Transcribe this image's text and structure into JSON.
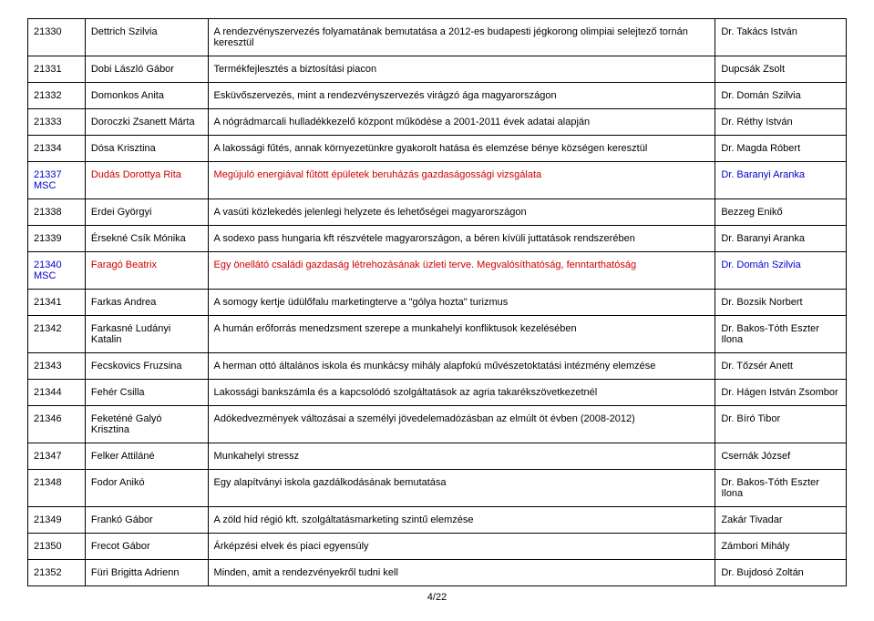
{
  "page_number": "4/22",
  "rows": [
    {
      "id": "21330",
      "name": "Dettrich Szilvia",
      "desc": "A rendezvényszervezés folyamatának bemutatása a 2012-es budapesti jégkorong olimpiai selejtező tornán keresztül",
      "rev": "Dr. Takács István",
      "highlight": false
    },
    {
      "id": "21331",
      "name": "Dobi László Gábor",
      "desc": "Termékfejlesztés a biztosítási piacon",
      "rev": "Dupcsák Zsolt",
      "highlight": false
    },
    {
      "id": "21332",
      "name": "Domonkos Anita",
      "desc": "Esküvőszervezés, mint a rendezvényszervezés virágzó ága magyarországon",
      "rev": "Dr. Domán Szilvia",
      "highlight": false
    },
    {
      "id": "21333",
      "name": "Doroczki Zsanett Márta",
      "desc": "A nógrádmarcali hulladékkezelő központ működése a 2001-2011 évek adatai alapján",
      "rev": "Dr. Réthy István",
      "highlight": false
    },
    {
      "id": "21334",
      "name": "Dósa Krisztina",
      "desc": "A lakossági fűtés, annak környezetünkre gyakorolt hatása és elemzése bénye községen keresztül",
      "rev": "Dr. Magda Róbert",
      "highlight": false
    },
    {
      "id": "21337 MSC",
      "name": "Dudás Dorottya Rita",
      "desc": "Megújuló energiával fűtött épületek beruházás gazdaságossági vizsgálata",
      "rev": "Dr. Baranyi Aranka",
      "highlight": true
    },
    {
      "id": "21338",
      "name": "Erdei Györgyi",
      "desc": "A vasúti közlekedés jelenlegi helyzete és lehetőségei magyarországon",
      "rev": "Bezzeg Enikő",
      "highlight": false
    },
    {
      "id": "21339",
      "name": "Érsekné Csík Mónika",
      "desc": "A sodexo pass hungaria kft részvétele magyarországon, a béren kívüli juttatások rendszerében",
      "rev": "Dr. Baranyi Aranka",
      "highlight": false
    },
    {
      "id": "21340 MSC",
      "name": "Faragó Beatrix",
      "desc": "Egy önellátó családi gazdaság létrehozásának üzleti terve. Megvalósíthatóság, fenntarthatóság",
      "rev": "Dr. Domán Szilvia",
      "highlight": true
    },
    {
      "id": "21341",
      "name": "Farkas Andrea",
      "desc": "A somogy kertje üdülőfalu marketingterve a \"gólya hozta\" turizmus",
      "rev": "Dr. Bozsik Norbert",
      "highlight": false
    },
    {
      "id": "21342",
      "name": "Farkasné Ludányi Katalin",
      "desc": "A humán erőforrás menedzsment szerepe a munkahelyi konfliktusok kezelésében",
      "rev": "Dr. Bakos-Tóth Eszter Ilona",
      "highlight": false
    },
    {
      "id": "21343",
      "name": "Fecskovics Fruzsina",
      "desc": "A herman ottó általános iskola és munkácsy mihály alapfokú művészetoktatási intézmény elemzése",
      "rev": "Dr. Tőzsér Anett",
      "highlight": false
    },
    {
      "id": "21344",
      "name": "Fehér Csilla",
      "desc": "Lakossági bankszámla és a kapcsolódó szolgáltatások az agria takarékszövetkezetnél",
      "rev": "Dr. Hágen István Zsombor",
      "highlight": false
    },
    {
      "id": "21346",
      "name": "Feketéné Galyó Krisztina",
      "desc": "Adókedvezmények változásai a személyi jövedelemadózásban  az elmúlt  öt évben (2008-2012)",
      "rev": "Dr. Bíró Tibor",
      "highlight": false
    },
    {
      "id": "21347",
      "name": "Felker Attiláné",
      "desc": "Munkahelyi stressz",
      "rev": "Csernák József",
      "highlight": false
    },
    {
      "id": "21348",
      "name": "Fodor Anikó",
      "desc": "Egy alapítványi iskola gazdálkodásának bemutatása",
      "rev": "Dr. Bakos-Tóth Eszter Ilona",
      "highlight": false
    },
    {
      "id": "21349",
      "name": "Frankó Gábor",
      "desc": "A zöld híd régió kft. szolgáltatásmarketing szintű elemzése",
      "rev": "Zakár Tivadar",
      "highlight": false
    },
    {
      "id": "21350",
      "name": "Frecot Gábor",
      "desc": "Árképzési elvek és piaci egyensúly",
      "rev": "Zámbori Mihály",
      "highlight": false
    },
    {
      "id": "21352",
      "name": "Füri Brigitta Adrienn",
      "desc": "Minden, amit a rendezvényekről tudni kell",
      "rev": "Dr. Bujdosó Zoltán",
      "highlight": false
    }
  ]
}
